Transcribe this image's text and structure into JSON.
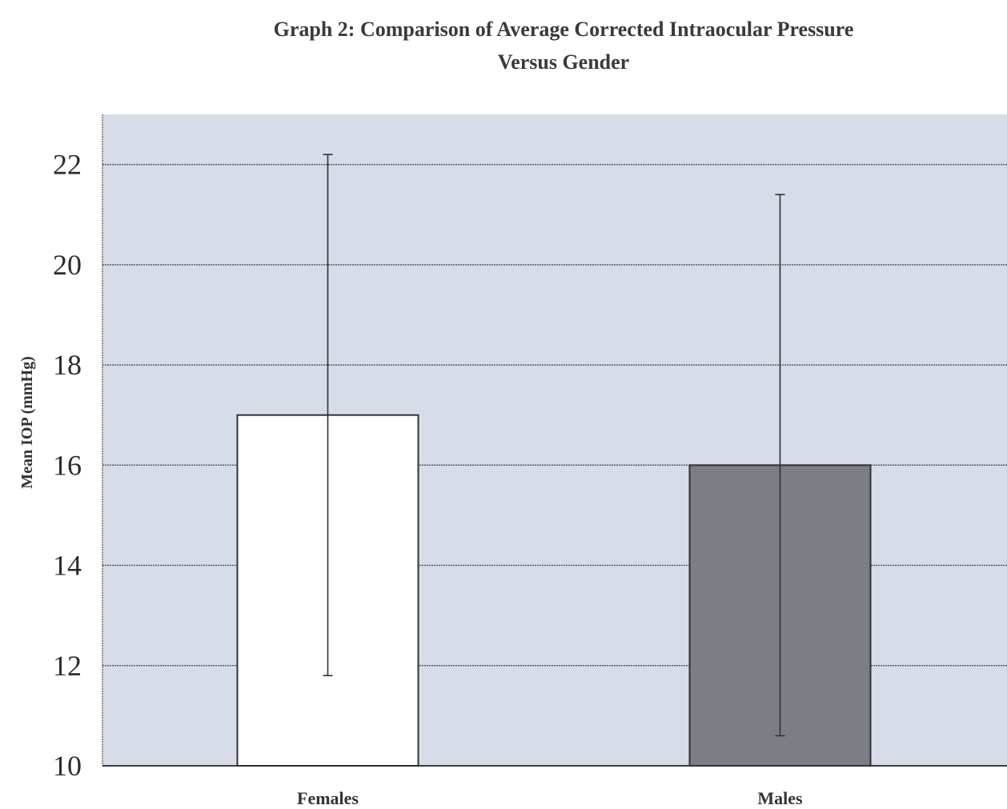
{
  "chart_data": {
    "type": "bar",
    "title_line1": "Graph 2: Comparison of Average Corrected Intraocular Pressure",
    "title_line2": "Versus Gender",
    "ylabel": "Mean IOP (mmHg)",
    "xlabel": "",
    "categories": [
      "Females",
      "Males"
    ],
    "values": [
      17.0,
      16.0
    ],
    "error_low": [
      11.8,
      10.6
    ],
    "error_high": [
      22.2,
      21.4
    ],
    "ylim": [
      10,
      23
    ],
    "yticks": [
      "10",
      "12",
      "14",
      "16",
      "18",
      "20",
      "22"
    ],
    "grid": true,
    "legend": "none",
    "colors": {
      "plot_background": "#d6dde9",
      "grid": "#555a62",
      "bar_females": "#ffffff",
      "bar_males": "#7b7f85",
      "bar_outline": "#2f3135",
      "error_bar": "#2f3135"
    }
  }
}
